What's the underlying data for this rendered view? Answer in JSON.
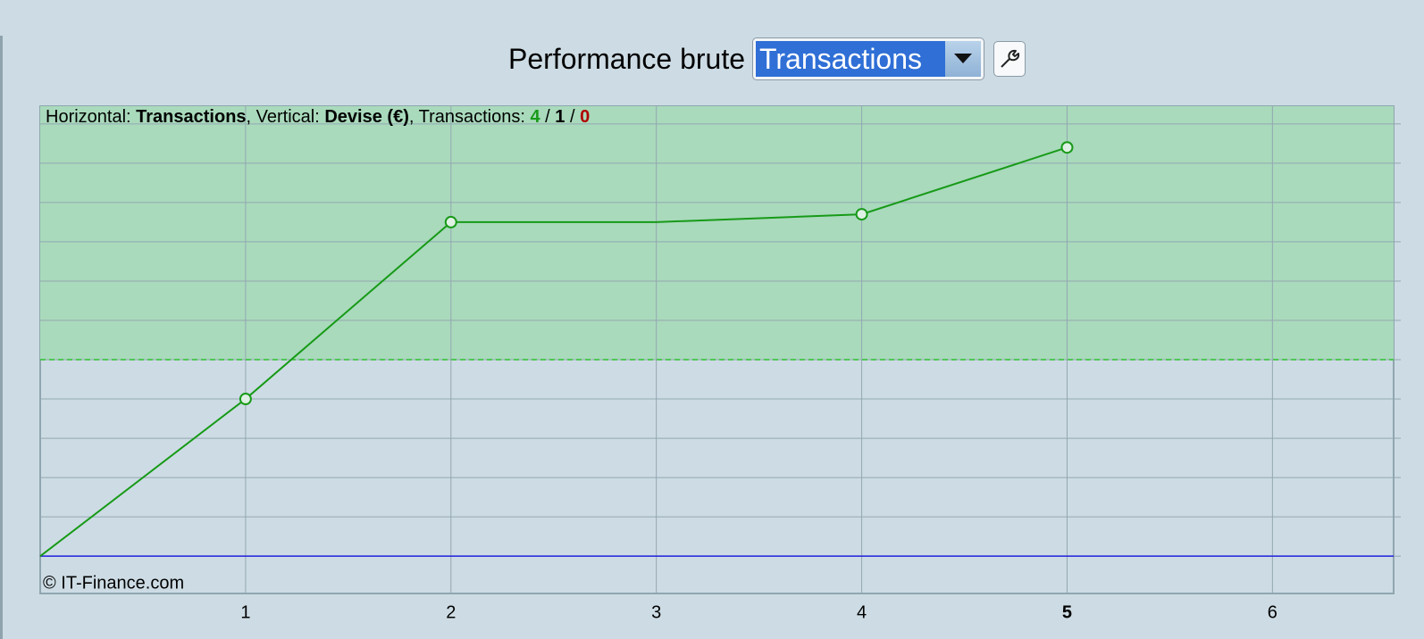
{
  "toolbar": {
    "label": "Performance brute",
    "selected": "Transactions"
  },
  "chart_data": {
    "type": "line",
    "info": {
      "horizontal_label": "Horizontal: ",
      "horizontal": "Transactions",
      "vertical_label": ", Vertical: ",
      "vertical": "Devise (€)",
      "count_label": ", Transactions: ",
      "wins": 4,
      "separator": " / ",
      "flat": 1,
      "losses": 0
    },
    "x": [
      0,
      1,
      2,
      3,
      4,
      5
    ],
    "series": [
      {
        "color": "#179a17",
        "values": [
          0,
          4,
          8.5,
          8.5,
          8.7,
          10.4
        ],
        "markers": [
          false,
          true,
          true,
          false,
          true,
          true
        ]
      }
    ],
    "xlim": [
      0,
      6.59
    ],
    "xticks": [
      1,
      2,
      3,
      4,
      5,
      6
    ],
    "highlight_xtick": 5,
    "ylim": [
      -0.95,
      11.45
    ],
    "yticks": [
      0,
      1,
      2,
      3,
      4,
      5,
      6,
      7,
      8,
      9,
      10,
      11
    ],
    "grid": true,
    "threshold": 5,
    "zone_color": "#a9dabc",
    "zero_line_color": "#2020dd",
    "copyright": "© IT-Finance.com"
  }
}
